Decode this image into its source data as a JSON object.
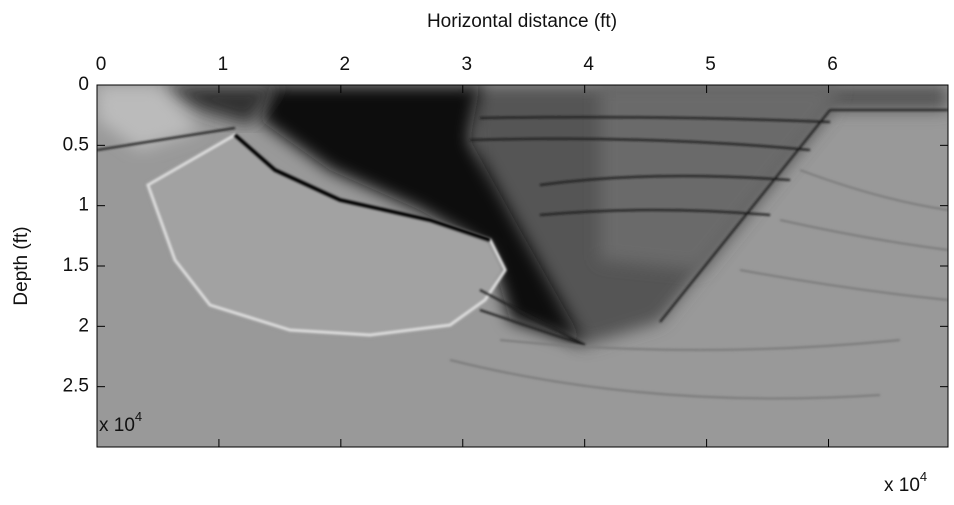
{
  "chart_data": {
    "type": "image",
    "xlabel": "Horizontal distance (ft)",
    "ylabel": "Depth (ft)",
    "xlim": [
      0,
      6.98
    ],
    "xticks": [
      0,
      1,
      2,
      3,
      4,
      5,
      6
    ],
    "ylim": [
      3,
      0
    ],
    "yticks": [
      0,
      0.5,
      1,
      1.5,
      2,
      2.5
    ],
    "x_multiplier": {
      "base": "x 10",
      "power": "4"
    },
    "y_multiplier": {
      "base": "x 10",
      "power": "4"
    },
    "colormap": "gray"
  }
}
